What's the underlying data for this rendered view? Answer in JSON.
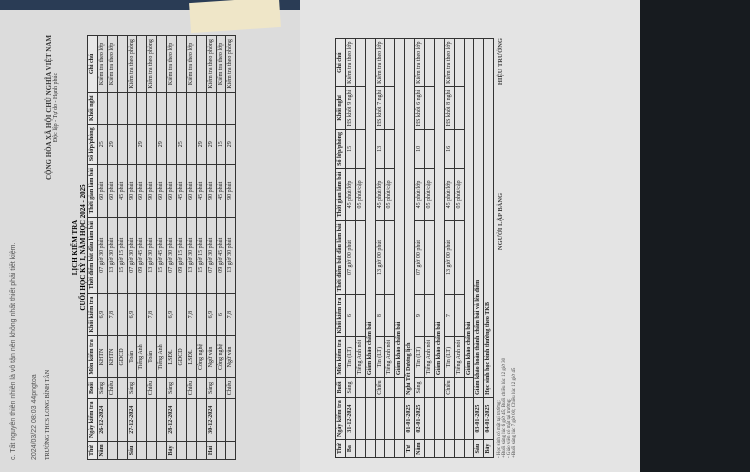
{
  "left_page": {
    "scrap_text": [
      "c. Tất nguyên thiên nhiên là vô tận nên không nhất thiết phải tiết kiệm.",
      "2024/03/22 08:03 44pngtoa"
    ],
    "school": "TRƯỜNG THCS LONG BÌNH TÂN",
    "nation": "CỘNG HÒA XÃ HỘI CHỦ NGHĨA VIỆT NAM",
    "motto": "Độc lập - Tự do - Hạnh phúc",
    "title": "LỊCH KIỂM TRA",
    "subtitle": "CUỐI HỌC KỲ I, NĂM HỌC 2024 - 2025",
    "headers": [
      "Thứ",
      "Ngày kiểm tra",
      "Buổi",
      "Môn kiểm tra",
      "Khối kiểm tra",
      "Thời điểm bắt đầu làm bài",
      "Thời gian làm bài",
      "Số lớp/phòng",
      "Khối nghỉ",
      "Ghi chú"
    ],
    "rows": [
      [
        "Năm",
        "26-12-2024",
        "Sáng",
        "KHTN",
        "6,9",
        "07 giờ 30 phút",
        "60 phút",
        "25",
        "",
        "Kiểm tra theo lớp"
      ],
      [
        "",
        "",
        "Chiều",
        "KHTN",
        "7,8",
        "13 giờ 30 phút",
        "60 phút",
        "29",
        "",
        "Kiểm tra theo lớp"
      ],
      [
        "",
        "",
        "",
        "GDCD",
        "",
        "15 giờ 15 phút",
        "45 phút",
        "",
        "",
        ""
      ],
      [
        "Sáu",
        "27-12-2024",
        "Sáng",
        "Toán",
        "6,9",
        "07 giờ 30 phút",
        "90 phút",
        "",
        "",
        "Kiểm tra theo phòng"
      ],
      [
        "",
        "",
        "",
        "Tiếng Anh",
        "",
        "09 giờ 45 phút",
        "60 phút",
        "29",
        "",
        ""
      ],
      [
        "",
        "",
        "Chiều",
        "Toán",
        "7,8",
        "13 giờ 30 phút",
        "90 phút",
        "",
        "",
        "Kiểm tra theo phòng"
      ],
      [
        "",
        "",
        "",
        "Tiếng Anh",
        "",
        "15 giờ 45 phút",
        "60 phút",
        "29",
        "",
        ""
      ],
      [
        "Bảy",
        "28-12-2024",
        "Sáng",
        "LSĐL",
        "6,9",
        "07 giờ 30 phút",
        "60 phút",
        "",
        "",
        "Kiểm tra theo lớp"
      ],
      [
        "",
        "",
        "",
        "GDCD",
        "",
        "09 giờ 15 phút",
        "45 phút",
        "25",
        "",
        ""
      ],
      [
        "",
        "",
        "Chiều",
        "LSĐL",
        "7,8",
        "13 giờ 30 phút",
        "60 phút",
        "",
        "",
        "Kiểm tra theo lớp"
      ],
      [
        "",
        "",
        "",
        "Công nghệ",
        "",
        "15 giờ 15 phút",
        "45 phút",
        "29",
        "",
        ""
      ],
      [
        "Hai",
        "30-12-2024",
        "Sáng",
        "Ngữ văn",
        "6,9",
        "07 giờ 30 phút",
        "90 phút",
        "29",
        "",
        "Kiểm tra theo phòng"
      ],
      [
        "",
        "",
        "",
        "Công nghệ",
        "6",
        "09 giờ 45 phút",
        "45 phút",
        "15",
        "",
        "Kiểm tra theo lớp"
      ],
      [
        "",
        "",
        "Chiều",
        "Ngữ văn",
        "7,8",
        "13 giờ 30 phút",
        "90 phút",
        "29",
        "",
        "Kiểm tra theo phòng"
      ]
    ]
  },
  "right_page": {
    "headers": [
      "Thứ",
      "Ngày kiểm tra",
      "Buổi",
      "Môn kiểm tra",
      "Khối kiểm tra",
      "Thời điểm bắt đầu làm bài",
      "Thời gian làm bài",
      "Số lớp/phòng",
      "Khối nghỉ",
      "Ghi chú"
    ],
    "rows": [
      [
        "Ba",
        "31-12-2024",
        "Sáng",
        "Tin (LT)",
        "6",
        "07 giờ 00 phút",
        "45 phút/lớp",
        "15",
        "HS khối 9 nghỉ",
        "Kiểm tra theo lớp"
      ],
      [
        "",
        "",
        "",
        "Tiếng Anh nói",
        "",
        "",
        "05 phút/cặp",
        "",
        "",
        ""
      ],
      [
        "",
        "",
        "",
        "Giám khảo chấm bài",
        "",
        "",
        "",
        "",
        "",
        ""
      ],
      [
        "",
        "",
        "Chiều",
        "Tin (LT)",
        "8",
        "13 giờ 00 phút",
        "45 phút/lớp",
        "13",
        "HS khối 7 nghỉ",
        "Kiểm tra theo lớp"
      ],
      [
        "",
        "",
        "",
        "Tiếng Anh nói",
        "",
        "",
        "05 phút/cặp",
        "",
        "",
        ""
      ],
      [
        "",
        "",
        "",
        "Giám khảo chấm bài",
        "",
        "",
        "",
        "",
        "",
        ""
      ],
      [
        "Tư",
        "01-01-2025",
        "Nghỉ Tết Dương lịch",
        "",
        "",
        "",
        "",
        "",
        "",
        ""
      ],
      [
        "Năm",
        "02-01-2025",
        "Sáng",
        "Tin (LT)",
        "9",
        "07 giờ 00 phút",
        "45 phút/lớp",
        "10",
        "HS khối 6 nghỉ",
        "Kiểm tra theo lớp"
      ],
      [
        "",
        "",
        "",
        "Tiếng Anh nói",
        "",
        "",
        "05 phút/cặp",
        "",
        "",
        ""
      ],
      [
        "",
        "",
        "",
        "Giám khảo chấm bài",
        "",
        "",
        "",
        "",
        "",
        ""
      ],
      [
        "",
        "",
        "Chiều",
        "Tin (LT)",
        "7",
        "13 giờ 00 phút",
        "45 phút/lớp",
        "16",
        "HS khối 8 nghỉ",
        "Kiểm tra theo lớp"
      ],
      [
        "",
        "",
        "",
        "Tiếng Anh nói",
        "",
        "",
        "05 phút/cặp",
        "",
        "",
        ""
      ],
      [
        "",
        "",
        "",
        "Giám khảo chấm bài",
        "",
        "",
        "",
        "",
        "",
        ""
      ],
      [
        "Sáu",
        "03-01-2025",
        "Giám khảo hoàn thành chấm bài và lên điểm",
        "",
        "",
        "",
        "",
        "",
        "",
        ""
      ],
      [
        "Bảy",
        "04-01-2025",
        "Học sinh học bình thường theo TKB",
        "",
        "",
        "",
        "",
        "",
        "",
        ""
      ]
    ],
    "notes": [
      "- Học sinh có mặt tại trường:",
      "+Buổi sáng lúc 6 giờ 45; Buổi chiều lúc 12 giờ 30",
      "- Giáo viên có mặt tại trường:",
      "+Buổi sáng lúc 7 giờ 00; Chiều lúc 12 giờ 45"
    ],
    "preparer": "NGƯỜI LẬP BẢNG",
    "principal": "HIỆU TRƯỞNG"
  }
}
